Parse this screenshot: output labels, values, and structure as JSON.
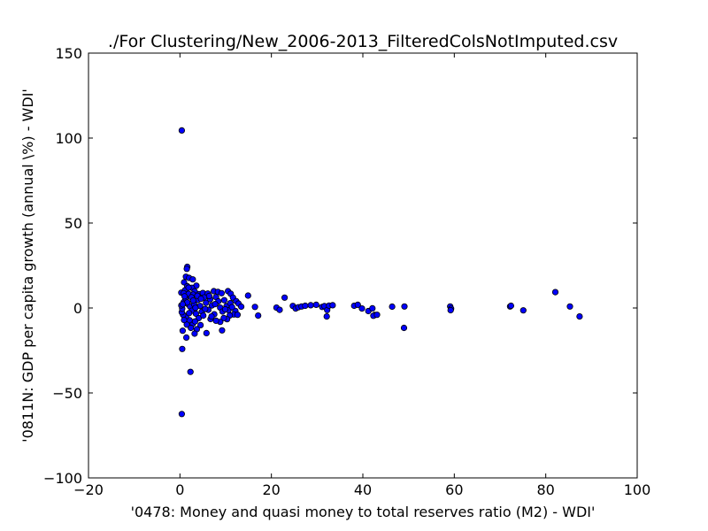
{
  "chart_data": {
    "type": "scatter",
    "title": "./For Clustering/New_2006-2013_FilteredColsNotImputed.csv",
    "xlabel": "'0478: Money and quasi money  to total reserves ratio (M2) - WDI'",
    "ylabel": "'0811N: GDP per capita growth  (annual \\%) - WDI'",
    "xlim": [
      -20,
      100
    ],
    "ylim": [
      -100,
      150
    ],
    "xticks": [
      -20,
      0,
      20,
      40,
      60,
      80,
      100
    ],
    "yticks": [
      -100,
      -50,
      0,
      50,
      100,
      150
    ],
    "xtick_labels": [
      "−20",
      "0",
      "20",
      "40",
      "60",
      "80",
      "100"
    ],
    "ytick_labels": [
      "−100",
      "−50",
      "0",
      "50",
      "100",
      "150"
    ],
    "grid": false,
    "marker_color": "#0000ff",
    "marker_edge_color": "#000000",
    "points": [
      [
        0.4,
        104.5
      ],
      [
        0.4,
        -62.4
      ],
      [
        0.5,
        -24.1
      ],
      [
        2.3,
        -37.6
      ],
      [
        0.6,
        -13.4
      ],
      [
        1.4,
        -17.4
      ],
      [
        1.6,
        24.2
      ],
      [
        1.5,
        23.0
      ],
      [
        1.3,
        18.4
      ],
      [
        2.0,
        17.7
      ],
      [
        2.8,
        16.8
      ],
      [
        0.9,
        15.1
      ],
      [
        1.6,
        12.8
      ],
      [
        3.6,
        13.1
      ],
      [
        2.6,
        11.9
      ],
      [
        1.1,
        10.4
      ],
      [
        3.2,
        9.8
      ],
      [
        0.3,
        9.0
      ],
      [
        0.8,
        8.7
      ],
      [
        1.9,
        8.3
      ],
      [
        2.9,
        7.9
      ],
      [
        4.2,
        8.1
      ],
      [
        5.0,
        8.8
      ],
      [
        6.1,
        8.5
      ],
      [
        7.4,
        9.9
      ],
      [
        8.3,
        9.5
      ],
      [
        9.1,
        8.7
      ],
      [
        10.5,
        9.9
      ],
      [
        11.1,
        8.4
      ],
      [
        11.6,
        6.1
      ],
      [
        12.3,
        4.0
      ],
      [
        12.8,
        2.6
      ],
      [
        13.4,
        0.8
      ],
      [
        12.1,
        -1.7
      ],
      [
        11.8,
        -3.8
      ],
      [
        10.9,
        -4.4
      ],
      [
        10.3,
        -6.6
      ],
      [
        9.6,
        -5.9
      ],
      [
        8.8,
        -8.2
      ],
      [
        9.2,
        -13.2
      ],
      [
        7.9,
        -7.5
      ],
      [
        6.7,
        -6.5
      ],
      [
        5.8,
        -14.8
      ],
      [
        4.5,
        -10.1
      ],
      [
        3.7,
        -12.5
      ],
      [
        3.2,
        -15.1
      ],
      [
        2.8,
        -9.4
      ],
      [
        2.1,
        -7.2
      ],
      [
        1.3,
        -5.1
      ],
      [
        0.7,
        -4.0
      ],
      [
        0.4,
        -2.5
      ],
      [
        0.5,
        -0.4
      ],
      [
        0.3,
        1.5
      ],
      [
        0.8,
        3.4
      ],
      [
        1.2,
        5.8
      ],
      [
        1.7,
        2.4
      ],
      [
        2.2,
        0.9
      ],
      [
        2.6,
        -1.6
      ],
      [
        3.1,
        2.1
      ],
      [
        3.5,
        -3.4
      ],
      [
        3.9,
        4.8
      ],
      [
        4.4,
        1.2
      ],
      [
        4.8,
        -2.2
      ],
      [
        5.3,
        6.2
      ],
      [
        5.7,
        3.0
      ],
      [
        6.2,
        -1.1
      ],
      [
        6.6,
        5.1
      ],
      [
        7.0,
        1.5
      ],
      [
        7.5,
        -3.7
      ],
      [
        7.9,
        6.4
      ],
      [
        8.4,
        3.9
      ],
      [
        8.8,
        0.2
      ],
      [
        9.3,
        -2.1
      ],
      [
        9.7,
        4.6
      ],
      [
        10.2,
        1.1
      ],
      [
        10.6,
        -1.3
      ],
      [
        11.0,
        2.8
      ],
      [
        4.1,
        -6.0
      ],
      [
        5.1,
        -4.5
      ],
      [
        6.9,
        -5.0
      ],
      [
        1.5,
        -9.8
      ],
      [
        2.4,
        -11.7
      ],
      [
        3.3,
        -7.9
      ],
      [
        0.9,
        -7.1
      ],
      [
        1.9,
        12.0
      ],
      [
        2.5,
        6.3
      ],
      [
        3.8,
        7.2
      ],
      [
        1.0,
        6.9
      ],
      [
        4.6,
        5.4
      ],
      [
        6.4,
        7.1
      ],
      [
        1.6,
        3.3
      ],
      [
        2.9,
        4.4
      ],
      [
        0.6,
        2.2
      ],
      [
        3.4,
        0.1
      ],
      [
        5.5,
        -0.6
      ],
      [
        7.7,
        2.3
      ],
      [
        9.9,
        -0.8
      ],
      [
        11.4,
        0.5
      ],
      [
        12.6,
        -4.0
      ],
      [
        2.0,
        -3.0
      ],
      [
        14.9,
        7.3
      ],
      [
        16.4,
        0.6
      ],
      [
        17.1,
        -4.5
      ],
      [
        21.1,
        0.2
      ],
      [
        21.8,
        -1.1
      ],
      [
        22.9,
        6.1
      ],
      [
        24.7,
        1.2
      ],
      [
        25.3,
        -0.3
      ],
      [
        25.9,
        0.4
      ],
      [
        26.6,
        0.9
      ],
      [
        27.4,
        1.3
      ],
      [
        28.6,
        1.6
      ],
      [
        29.8,
        1.9
      ],
      [
        31.1,
        0.6
      ],
      [
        31.6,
        1.1
      ],
      [
        32.2,
        -1.2
      ],
      [
        32.6,
        1.4
      ],
      [
        32.1,
        -5.0
      ],
      [
        33.4,
        1.6
      ],
      [
        38.1,
        1.3
      ],
      [
        38.9,
        1.9
      ],
      [
        39.8,
        -0.3
      ],
      [
        41.2,
        -1.8
      ],
      [
        42.1,
        -0.2
      ],
      [
        42.6,
        -4.1
      ],
      [
        42.3,
        -4.6
      ],
      [
        43.1,
        -4.0
      ],
      [
        46.4,
        0.8
      ],
      [
        49.1,
        0.9
      ],
      [
        49.0,
        -11.7
      ],
      [
        59.1,
        0.9
      ],
      [
        59.3,
        -0.4
      ],
      [
        59.2,
        -1.3
      ],
      [
        72.2,
        0.9
      ],
      [
        72.4,
        1.3
      ],
      [
        75.1,
        -1.4
      ],
      [
        82.1,
        9.3
      ],
      [
        85.3,
        0.9
      ],
      [
        87.4,
        -5.0
      ]
    ]
  }
}
